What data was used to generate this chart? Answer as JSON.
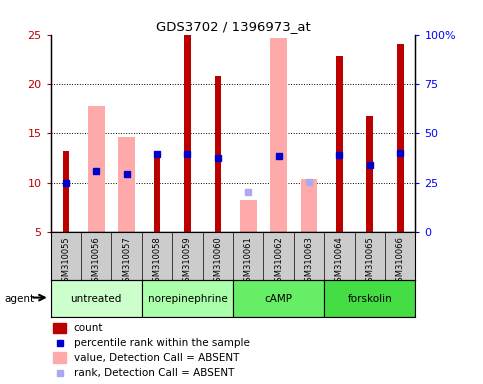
{
  "title": "GDS3702 / 1396973_at",
  "samples": [
    "GSM310055",
    "GSM310056",
    "GSM310057",
    "GSM310058",
    "GSM310059",
    "GSM310060",
    "GSM310061",
    "GSM310062",
    "GSM310063",
    "GSM310064",
    "GSM310065",
    "GSM310066"
  ],
  "agents": [
    {
      "label": "untreated",
      "samples": [
        0,
        1,
        2
      ],
      "color": "#ccffcc"
    },
    {
      "label": "norepinephrine",
      "samples": [
        3,
        4,
        5
      ],
      "color": "#aaffaa"
    },
    {
      "label": "cAMP",
      "samples": [
        6,
        7,
        8
      ],
      "color": "#66ee66"
    },
    {
      "label": "forskolin",
      "samples": [
        9,
        10,
        11
      ],
      "color": "#44dd44"
    }
  ],
  "red_bars": [
    13.2,
    null,
    null,
    13.0,
    25.0,
    20.8,
    null,
    null,
    null,
    22.8,
    16.8,
    24.0
  ],
  "pink_bars": [
    null,
    17.8,
    14.6,
    null,
    null,
    null,
    8.3,
    24.7,
    10.4,
    null,
    null,
    null
  ],
  "blue_squares": [
    10.0,
    11.2,
    10.9,
    12.9,
    12.9,
    12.5,
    null,
    12.7,
    null,
    12.8,
    11.8,
    13.0
  ],
  "light_blue_squares": [
    null,
    null,
    null,
    null,
    null,
    null,
    9.1,
    null,
    10.1,
    null,
    null,
    null
  ],
  "ylim": [
    5,
    25
  ],
  "yticks_left": [
    5,
    10,
    15,
    20,
    25
  ],
  "yticks_right_pos": [
    5,
    10,
    15,
    20,
    25
  ],
  "yticks_right_labels": [
    "0",
    "25",
    "50",
    "75",
    "100%"
  ],
  "grid_lines": [
    10,
    15,
    20
  ],
  "red_color": "#bb0000",
  "pink_color": "#ffaaaa",
  "blue_color": "#0000cc",
  "light_blue_color": "#aaaaee",
  "sample_bg_color": "#cccccc",
  "legend_items": [
    {
      "color": "#bb0000",
      "type": "rect",
      "label": "count"
    },
    {
      "color": "#0000cc",
      "type": "square",
      "label": "percentile rank within the sample"
    },
    {
      "color": "#ffaaaa",
      "type": "rect",
      "label": "value, Detection Call = ABSENT"
    },
    {
      "color": "#aaaaee",
      "type": "square",
      "label": "rank, Detection Call = ABSENT"
    }
  ]
}
